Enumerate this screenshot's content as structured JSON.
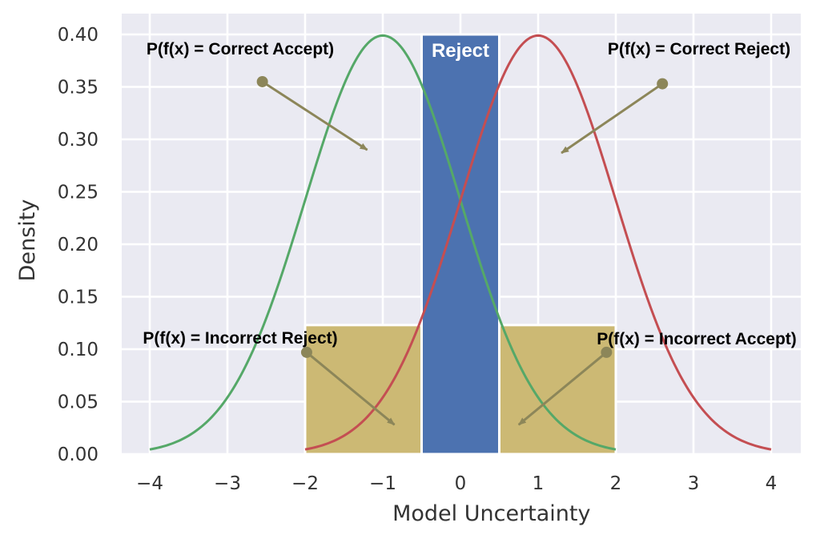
{
  "chart_data": {
    "type": "line",
    "xlabel": "Model Uncertainty",
    "ylabel": "Density",
    "xlim": [
      -4.35,
      4.4
    ],
    "ylim": [
      0.0,
      0.42
    ],
    "x_ticks": [
      -4,
      -3,
      -2,
      -1,
      0,
      1,
      2,
      3,
      4
    ],
    "x_tick_labels": [
      "−4",
      "−3",
      "−2",
      "−1",
      "0",
      "1",
      "2",
      "3",
      "4"
    ],
    "y_ticks": [
      0.0,
      0.05,
      0.1,
      0.15,
      0.2,
      0.25,
      0.3,
      0.35,
      0.4
    ],
    "y_tick_labels": [
      "0.00",
      "0.05",
      "0.10",
      "0.15",
      "0.20",
      "0.25",
      "0.30",
      "0.35",
      "0.40"
    ],
    "grid": true,
    "background": "#eaeaf2",
    "series": [
      {
        "distribution": "normal",
        "mean": -1,
        "std": 1,
        "x_range": [
          -4,
          2
        ],
        "color": "#55a868"
      },
      {
        "distribution": "normal",
        "mean": 1,
        "std": 1,
        "x_range": [
          -2,
          4
        ],
        "color": "#c44e52"
      }
    ],
    "regions": [
      {
        "x": [
          -2.0,
          -0.5
        ],
        "y": [
          0.0,
          0.123
        ],
        "color": "#ccb974"
      },
      {
        "x": [
          -0.5,
          0.5
        ],
        "y": [
          0.0,
          0.4
        ],
        "color": "#4c72b0",
        "label": "Reject"
      },
      {
        "x": [
          0.5,
          2.0
        ],
        "y": [
          0.0,
          0.123
        ],
        "color": "#ccb974"
      }
    ],
    "annotations": [
      {
        "text": "P(f(x) = Correct Accept)",
        "arrow_from": [
          -2.55,
          0.355
        ],
        "arrow_to": [
          -1.2,
          0.29
        ]
      },
      {
        "text": "P(f(x) = Correct Reject)",
        "arrow_from": [
          2.6,
          0.353
        ],
        "arrow_to": [
          1.3,
          0.287
        ]
      },
      {
        "text": "P(f(x) = Incorrect Reject)",
        "arrow_from": [
          -1.98,
          0.097
        ],
        "arrow_to": [
          -0.85,
          0.028
        ]
      },
      {
        "text": "P(f(x) = Incorrect Accept)",
        "arrow_from": [
          1.88,
          0.097
        ],
        "arrow_to": [
          0.75,
          0.028
        ]
      }
    ],
    "arrow_color": "#8c8659"
  }
}
